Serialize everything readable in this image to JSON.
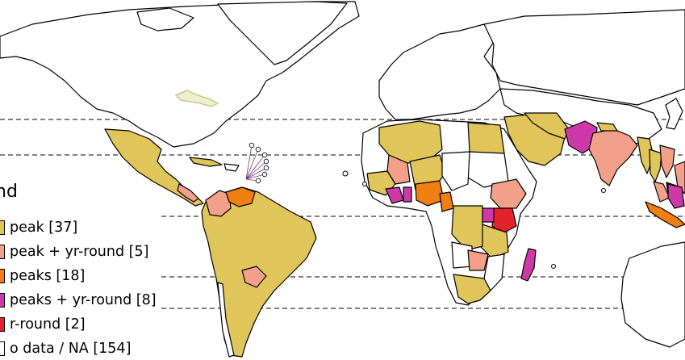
{
  "legend": {
    "title": "nd",
    "items": [
      {
        "label": "peak [37]",
        "color": "#e0c55a"
      },
      {
        "label": "peak + yr-round [5]",
        "color": "#f2a08a"
      },
      {
        "label": "peaks [18]",
        "color": "#f07f12"
      },
      {
        "label": "peaks + yr-round [8]",
        "color": "#cf38a8"
      },
      {
        "label": "r-round [2]",
        "color": "#e4222a"
      },
      {
        "label": "o data / NA [154]",
        "color": "#ffffff"
      }
    ]
  },
  "colors": {
    "one_peak": "#e0c55a",
    "one_peak_yr_round": "#f2a08a",
    "two_peaks": "#f07f12",
    "two_peaks_yr_round": "#cf38a8",
    "yr_round": "#e4222a",
    "no_data": "#ffffff"
  }
}
